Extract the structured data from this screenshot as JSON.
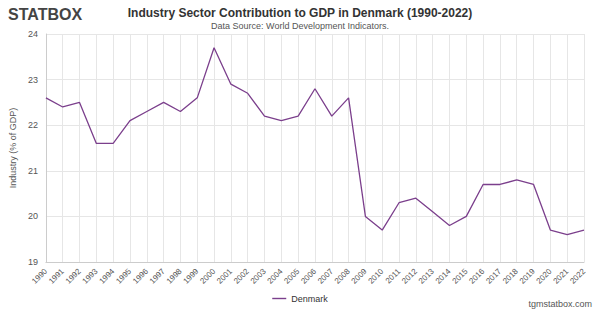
{
  "chart_data": {
    "type": "line",
    "title": "Industry Sector Contribution to GDP in Denmark (1990-2022)",
    "subtitle": "Data Source: World Development Indicators.",
    "y_label": "Industry (% of GDP)",
    "annotations": [
      "STATBOX",
      "tgmstatbox.com"
    ],
    "categories": [
      "1990",
      "1991",
      "1992",
      "1993",
      "1994",
      "1995",
      "1996",
      "1997",
      "1998",
      "1999",
      "2000",
      "2001",
      "2002",
      "2003",
      "2004",
      "2005",
      "2006",
      "2007",
      "2008",
      "2009",
      "2010",
      "2011",
      "2012",
      "2013",
      "2014",
      "2015",
      "2016",
      "2017",
      "2018",
      "2019",
      "2020",
      "2021",
      "2022"
    ],
    "series": [
      {
        "name": "Denmark",
        "color": "#7b3f8c",
        "values": [
          22.6,
          22.4,
          22.5,
          21.6,
          21.6,
          22.1,
          22.3,
          22.5,
          22.3,
          22.6,
          23.7,
          22.9,
          22.7,
          22.2,
          22.1,
          22.2,
          22.8,
          22.2,
          22.6,
          20.0,
          19.7,
          20.3,
          20.4,
          20.1,
          19.8,
          20.0,
          20.7,
          20.7,
          20.8,
          20.7,
          19.7,
          19.6,
          19.7
        ]
      }
    ],
    "ylim": [
      19,
      24
    ],
    "yticks": [
      19,
      20,
      21,
      22,
      23,
      24
    ],
    "grid": true,
    "legend": "bottom"
  }
}
